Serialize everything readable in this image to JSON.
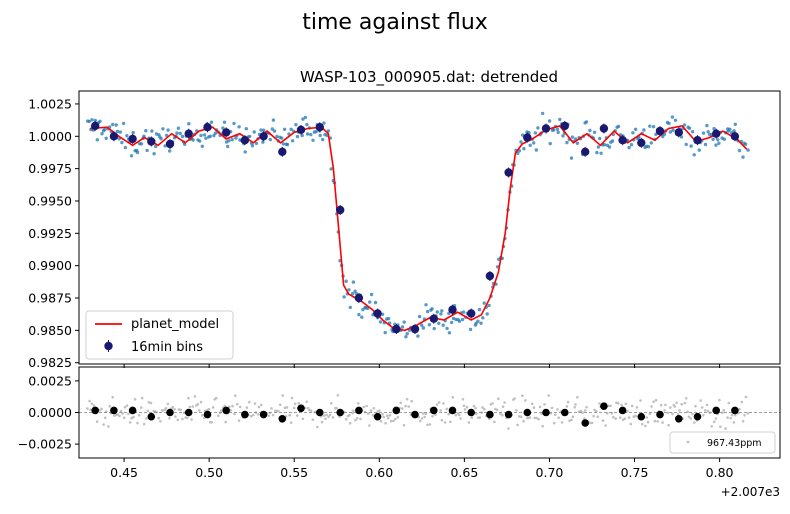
{
  "figure": {
    "suptitle": "time against flux"
  },
  "chart_data": [
    {
      "type": "scatter",
      "title": "WASP-103_000905.dat: detrended",
      "xlabel": "",
      "ylabel": "",
      "x_offset_label": "+2.007e3",
      "xlim": [
        0.4235,
        0.8355
      ],
      "ylim": [
        0.9824,
        1.0035
      ],
      "x_ticks": [
        0.45,
        0.5,
        0.55,
        0.6,
        0.65,
        0.7,
        0.75,
        0.8
      ],
      "x_tick_labels": [
        "0.45",
        "0.50",
        "0.55",
        "0.60",
        "0.65",
        "0.70",
        "0.75",
        "0.80"
      ],
      "y_ticks": [
        0.9825,
        0.985,
        0.9875,
        0.99,
        0.9925,
        0.995,
        0.9975,
        1.0,
        1.0025
      ],
      "y_tick_labels": [
        "0.9825",
        "0.9850",
        "0.9875",
        "0.9900",
        "0.9925",
        "0.9950",
        "0.9975",
        "1.0000",
        "1.0025"
      ],
      "grid": false,
      "legend": {
        "position": "lower-left",
        "entries": [
          {
            "label": "planet_model",
            "kind": "line",
            "color": "#ff0000"
          },
          {
            "label": "16min bins",
            "kind": "errorbar-marker",
            "color": "#191970"
          }
        ]
      },
      "series": [
        {
          "name": "planet_model",
          "kind": "line",
          "color": "#ff0000",
          "x": [
            0.43,
            0.44,
            0.448,
            0.455,
            0.462,
            0.47,
            0.478,
            0.486,
            0.494,
            0.502,
            0.51,
            0.518,
            0.526,
            0.534,
            0.542,
            0.55,
            0.558,
            0.566,
            0.57,
            0.573,
            0.576,
            0.579,
            0.582,
            0.586,
            0.59,
            0.596,
            0.602,
            0.608,
            0.615,
            0.622,
            0.63,
            0.638,
            0.646,
            0.654,
            0.66,
            0.665,
            0.67,
            0.674,
            0.677,
            0.68,
            0.684,
            0.69,
            0.698,
            0.706,
            0.714,
            0.722,
            0.73,
            0.738,
            0.746,
            0.754,
            0.762,
            0.77,
            0.778,
            0.786,
            0.794,
            0.802,
            0.81,
            0.816
          ],
          "y": [
            1.0006,
            1.0007,
            0.9999,
            0.9993,
            0.9999,
            0.9993,
            1.0002,
            0.9995,
            1.0004,
            1.0007,
            0.9998,
            1.0002,
            0.9995,
            1.0004,
            0.9995,
            1.0003,
            1.0006,
            1.0007,
            1.0002,
            0.9975,
            0.993,
            0.9885,
            0.9878,
            0.9875,
            0.9872,
            0.9866,
            0.9858,
            0.9852,
            0.985,
            0.9854,
            0.986,
            0.9858,
            0.9864,
            0.9858,
            0.9862,
            0.9875,
            0.9895,
            0.9925,
            0.996,
            0.9987,
            0.9994,
            0.9998,
            1.0005,
            1.0008,
            0.9995,
            1.0002,
            0.9993,
            1.0004,
            0.9995,
            1.0002,
            0.9997,
            1.0006,
            1.0008,
            0.9996,
            0.9999,
            1.0004,
            0.9998,
            0.999
          ]
        },
        {
          "name": "16min bins",
          "kind": "errorbar",
          "color": "#191970",
          "x": [
            0.433,
            0.444,
            0.455,
            0.466,
            0.477,
            0.488,
            0.499,
            0.51,
            0.521,
            0.532,
            0.543,
            0.554,
            0.565,
            0.577,
            0.588,
            0.599,
            0.61,
            0.621,
            0.632,
            0.643,
            0.654,
            0.665,
            0.676,
            0.687,
            0.698,
            0.709,
            0.721,
            0.732,
            0.743,
            0.754,
            0.765,
            0.776,
            0.787,
            0.798,
            0.809
          ],
          "y": [
            1.0008,
            1.0,
            0.9998,
            0.9996,
            0.9994,
            1.0002,
            1.0007,
            1.0003,
            0.9997,
            1.0,
            0.9988,
            1.0005,
            1.0007,
            0.9943,
            0.9875,
            0.9863,
            0.9851,
            0.9851,
            0.9859,
            0.9866,
            0.9863,
            0.9892,
            0.9972,
            0.9999,
            1.0006,
            1.0008,
            0.9988,
            1.0006,
            0.9997,
            0.9995,
            1.0004,
            1.0003,
            0.9997,
            1.0002,
            1.0
          ]
        },
        {
          "name": "",
          "kind": "scatter",
          "color": "#1f77b4",
          "note_generated": true
        }
      ]
    },
    {
      "type": "scatter",
      "title": "",
      "xlabel": "",
      "ylabel": "",
      "xlim": [
        0.4235,
        0.8355
      ],
      "ylim": [
        -0.0036,
        0.0036
      ],
      "y_ticks": [
        -0.0025,
        0.0,
        0.0025
      ],
      "y_tick_labels": [
        "−0.0025",
        "0.0000",
        "0.0025"
      ],
      "reference_line": 0.0,
      "grid": false,
      "legend": {
        "position": "lower-right",
        "entries": [
          {
            "label": "967.43ppm",
            "kind": "marker",
            "color": "#c0c0c0"
          }
        ]
      },
      "series": [
        {
          "name": "",
          "kind": "binned-residuals",
          "color": "#000000",
          "x": [
            0.433,
            0.444,
            0.455,
            0.466,
            0.477,
            0.488,
            0.499,
            0.51,
            0.521,
            0.532,
            0.543,
            0.554,
            0.565,
            0.577,
            0.588,
            0.599,
            0.61,
            0.621,
            0.632,
            0.643,
            0.654,
            0.665,
            0.676,
            0.687,
            0.698,
            0.709,
            0.721,
            0.732,
            0.743,
            0.754,
            0.765,
            0.776,
            0.787,
            0.798,
            0.809
          ],
          "y": [
            0.00017,
            0.00017,
            0.00017,
            -0.00033,
            0.0,
            0.0,
            -0.00017,
            0.00017,
            -0.00017,
            -0.00017,
            -0.0005,
            0.00033,
            0.0,
            0.0,
            0.00017,
            -0.00033,
            0.00017,
            -0.00017,
            0.00017,
            0.00017,
            0.0,
            -0.00017,
            -0.00017,
            0.0,
            0.0,
            0.0,
            -0.00083,
            0.0005,
            0.00017,
            -0.00033,
            -0.00017,
            -0.0005,
            -0.00033,
            0.00017,
            0.00017
          ]
        },
        {
          "name": "967.43ppm",
          "kind": "scatter",
          "color": "#c0c0c0",
          "rms_ppm": 967.43
        }
      ]
    }
  ]
}
